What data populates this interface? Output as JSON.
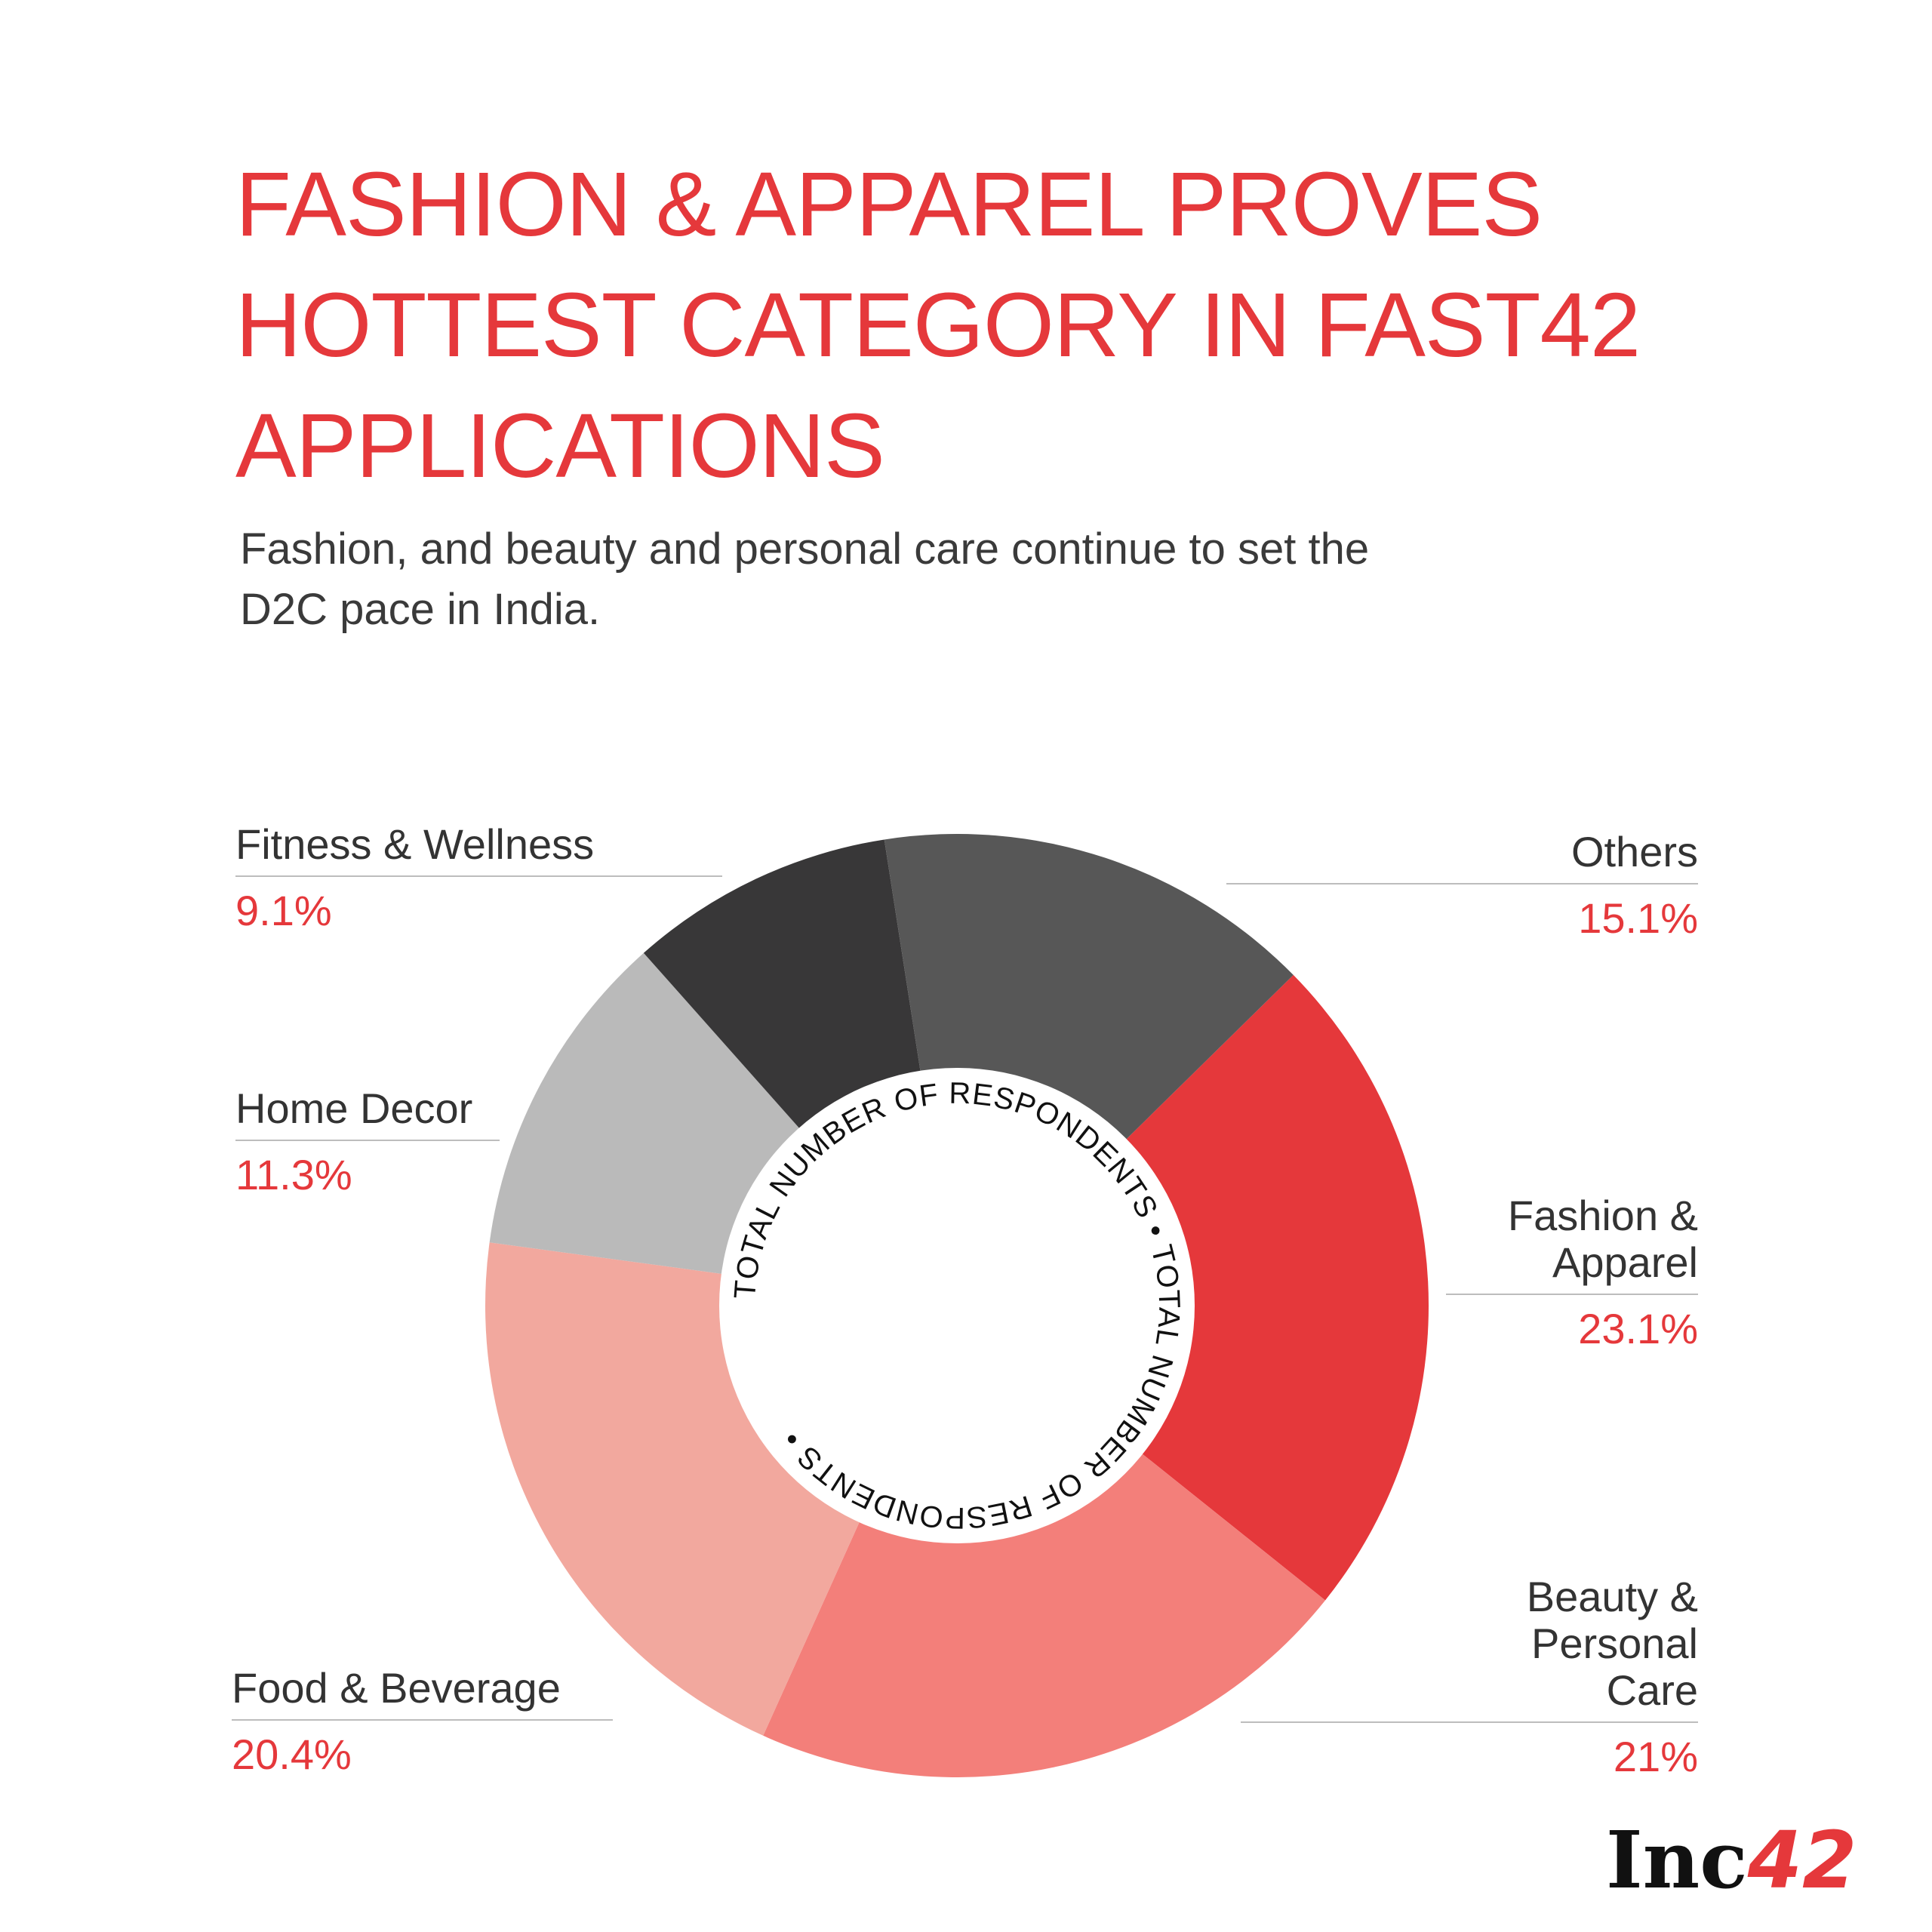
{
  "header": {
    "title_lines": [
      "FASHION & APPAREL PROVES",
      "HOTTEST  CATEGORY IN FAST42",
      "APPLICATIONS"
    ],
    "subtitle_lines": [
      "Fashion, and beauty and personal care continue to set the",
      "D2C pace in India."
    ]
  },
  "chart_data": {
    "type": "pie",
    "donut": true,
    "center_ring_text": "TOTAL NUMBER OF RESPONDENTS • TOTAL NUMBER OF RESPONDENTS •",
    "slices": [
      {
        "label": "Fashion & Apparel",
        "label_lines": [
          "Fashion &",
          "Apparel"
        ],
        "value": 23.1,
        "value_label": "23.1%",
        "color": "#e5383b"
      },
      {
        "label": "Beauty & Personal Care",
        "label_lines": [
          "Beauty &",
          "Personal",
          "Care"
        ],
        "value": 21,
        "value_label": "21%",
        "color": "#f37f7a"
      },
      {
        "label": "Food & Beverage",
        "label_lines": [
          "Food & Beverage"
        ],
        "value": 20.4,
        "value_label": "20.4%",
        "color": "#f2a89e"
      },
      {
        "label": "Home Decor",
        "label_lines": [
          "Home Decor"
        ],
        "value": 11.3,
        "value_label": "11.3%",
        "color": "#bababa"
      },
      {
        "label": "Fitness & Wellness",
        "label_lines": [
          "Fitness & Wellness"
        ],
        "value": 9.1,
        "value_label": "9.1%",
        "color": "#383738"
      },
      {
        "label": "Others",
        "label_lines": [
          "Others"
        ],
        "value": 15.1,
        "value_label": "15.1%",
        "color": "#575757"
      }
    ]
  },
  "branding": {
    "logo_text": "Inc",
    "logo_number": "42"
  }
}
